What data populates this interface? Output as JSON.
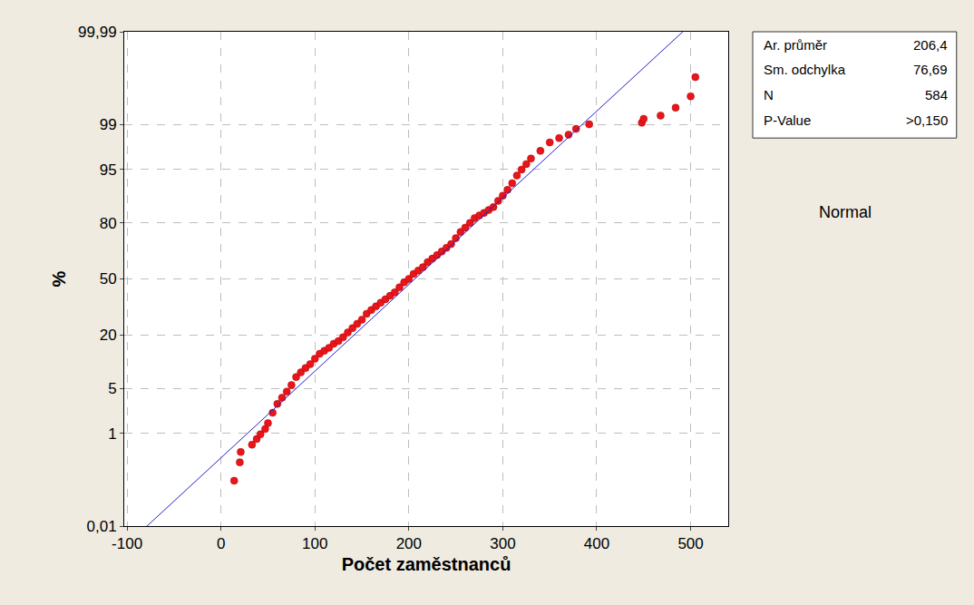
{
  "chart_data": {
    "type": "probability",
    "xlabel": "Počet zaměstnanců",
    "ylabel": "%",
    "xlim": [
      -103,
      540
    ],
    "xticks": [
      -100,
      0,
      100,
      200,
      300,
      400,
      500
    ],
    "ylim": [
      0.01,
      99.99
    ],
    "yticks": [
      {
        "value": 0.01,
        "label": "0,01"
      },
      1,
      5,
      20,
      50,
      80,
      95,
      99,
      {
        "value": 99.99,
        "label": "99,99"
      }
    ],
    "grid": true,
    "series": [
      {
        "type": "scatter",
        "marker": "circle",
        "color": "#e8161b",
        "x": [
          14,
          20,
          21,
          33,
          38,
          42,
          47,
          50,
          55,
          60,
          65,
          70,
          75,
          80,
          85,
          90,
          95,
          100,
          105,
          110,
          115,
          120,
          125,
          130,
          135,
          140,
          145,
          150,
          155,
          160,
          165,
          170,
          175,
          180,
          185,
          190,
          195,
          200,
          205,
          210,
          215,
          220,
          225,
          230,
          235,
          240,
          245,
          250,
          255,
          260,
          265,
          270,
          275,
          280,
          285,
          290,
          295,
          300,
          305,
          310,
          315,
          320,
          325,
          330,
          340,
          350,
          360,
          370,
          378,
          392,
          448,
          450,
          468,
          484,
          500,
          505
        ],
        "values": [
          0.12,
          0.29,
          0.46,
          0.63,
          0.8,
          0.97,
          1.2,
          1.5,
          2.2,
          3,
          3.7,
          4.5,
          5.5,
          7,
          8,
          9,
          10,
          11.5,
          13,
          14,
          15,
          16.5,
          17.5,
          19,
          21,
          23,
          25,
          27,
          30,
          32,
          34,
          36,
          38,
          40,
          42,
          45,
          48,
          50,
          53,
          55,
          57,
          60,
          62,
          64,
          66,
          68,
          70,
          73,
          76,
          78,
          80,
          82,
          83,
          84,
          85,
          86,
          88,
          89.5,
          91,
          92.5,
          94,
          95,
          95.8,
          96.5,
          97.3,
          98,
          98.3,
          98.5,
          98.8,
          99.0,
          99.06,
          99.2,
          99.3,
          99.5,
          99.7,
          99.88
        ]
      },
      {
        "type": "line",
        "line_style": "solid",
        "color": "#2020d0",
        "x": [
          -78.8,
          491.6
        ],
        "values": [
          0.01,
          99.99
        ]
      }
    ],
    "stats_box": [
      [
        "Ar. průměr",
        "206,4"
      ],
      [
        "Sm. odchylka",
        "76,69"
      ],
      [
        "N",
        "584"
      ],
      [
        "P-Value",
        ">0,150"
      ]
    ],
    "annotations": [
      "Normal"
    ]
  }
}
